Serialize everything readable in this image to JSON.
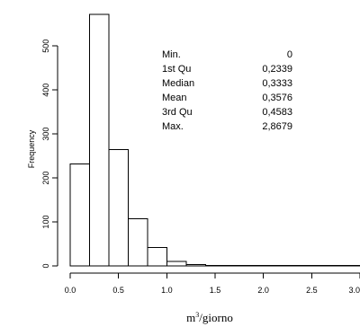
{
  "chart_data": {
    "type": "histogram",
    "bins": [
      {
        "x0": 0.0,
        "x1": 0.2,
        "count": 232
      },
      {
        "x0": 0.2,
        "x1": 0.4,
        "count": 572
      },
      {
        "x0": 0.4,
        "x1": 0.6,
        "count": 265
      },
      {
        "x0": 0.6,
        "x1": 0.8,
        "count": 107
      },
      {
        "x0": 0.8,
        "x1": 1.0,
        "count": 42
      },
      {
        "x0": 1.0,
        "x1": 1.2,
        "count": 10
      },
      {
        "x0": 1.2,
        "x1": 1.4,
        "count": 3
      },
      {
        "x0": 1.4,
        "x1": 1.6,
        "count": 1
      },
      {
        "x0": 1.6,
        "x1": 1.8,
        "count": 1
      },
      {
        "x0": 1.8,
        "x1": 2.0,
        "count": 1
      },
      {
        "x0": 2.0,
        "x1": 2.2,
        "count": 1
      },
      {
        "x0": 2.2,
        "x1": 2.4,
        "count": 1
      },
      {
        "x0": 2.4,
        "x1": 2.6,
        "count": 1
      },
      {
        "x0": 2.6,
        "x1": 2.8,
        "count": 1
      },
      {
        "x0": 2.8,
        "x1": 3.0,
        "count": 1
      }
    ],
    "x_ticks": [
      {
        "value": 0.0,
        "label": "0.0"
      },
      {
        "value": 0.5,
        "label": "0.5"
      },
      {
        "value": 1.0,
        "label": "1.0"
      },
      {
        "value": 1.5,
        "label": "1.5"
      },
      {
        "value": 2.0,
        "label": "2.0"
      },
      {
        "value": 2.5,
        "label": "2.5"
      },
      {
        "value": 3.0,
        "label": "3.0"
      }
    ],
    "y_ticks": [
      {
        "value": 0,
        "label": "0"
      },
      {
        "value": 100,
        "label": "100"
      },
      {
        "value": 200,
        "label": "200"
      },
      {
        "value": 300,
        "label": "300"
      },
      {
        "value": 400,
        "label": "400"
      },
      {
        "value": 500,
        "label": "500"
      }
    ],
    "xlim": [
      0,
      3.0
    ],
    "ylim": [
      0,
      572
    ],
    "xlabel_prefix": "m",
    "xlabel_sup": "3",
    "xlabel_suffix": "/giorno",
    "ylabel": "Frequency",
    "grid": false,
    "bar_fill": "#ffffff",
    "bar_stroke": "#000000"
  },
  "summary_stats": [
    {
      "label": "Min.",
      "value": "0"
    },
    {
      "label": "1st Qu",
      "value": "0,2339"
    },
    {
      "label": "Median",
      "value": "0,3333"
    },
    {
      "label": "Mean",
      "value": "0,3576"
    },
    {
      "label": "3rd Qu",
      "value": "0,4583"
    },
    {
      "label": "Max.",
      "value": "2,8679"
    }
  ]
}
